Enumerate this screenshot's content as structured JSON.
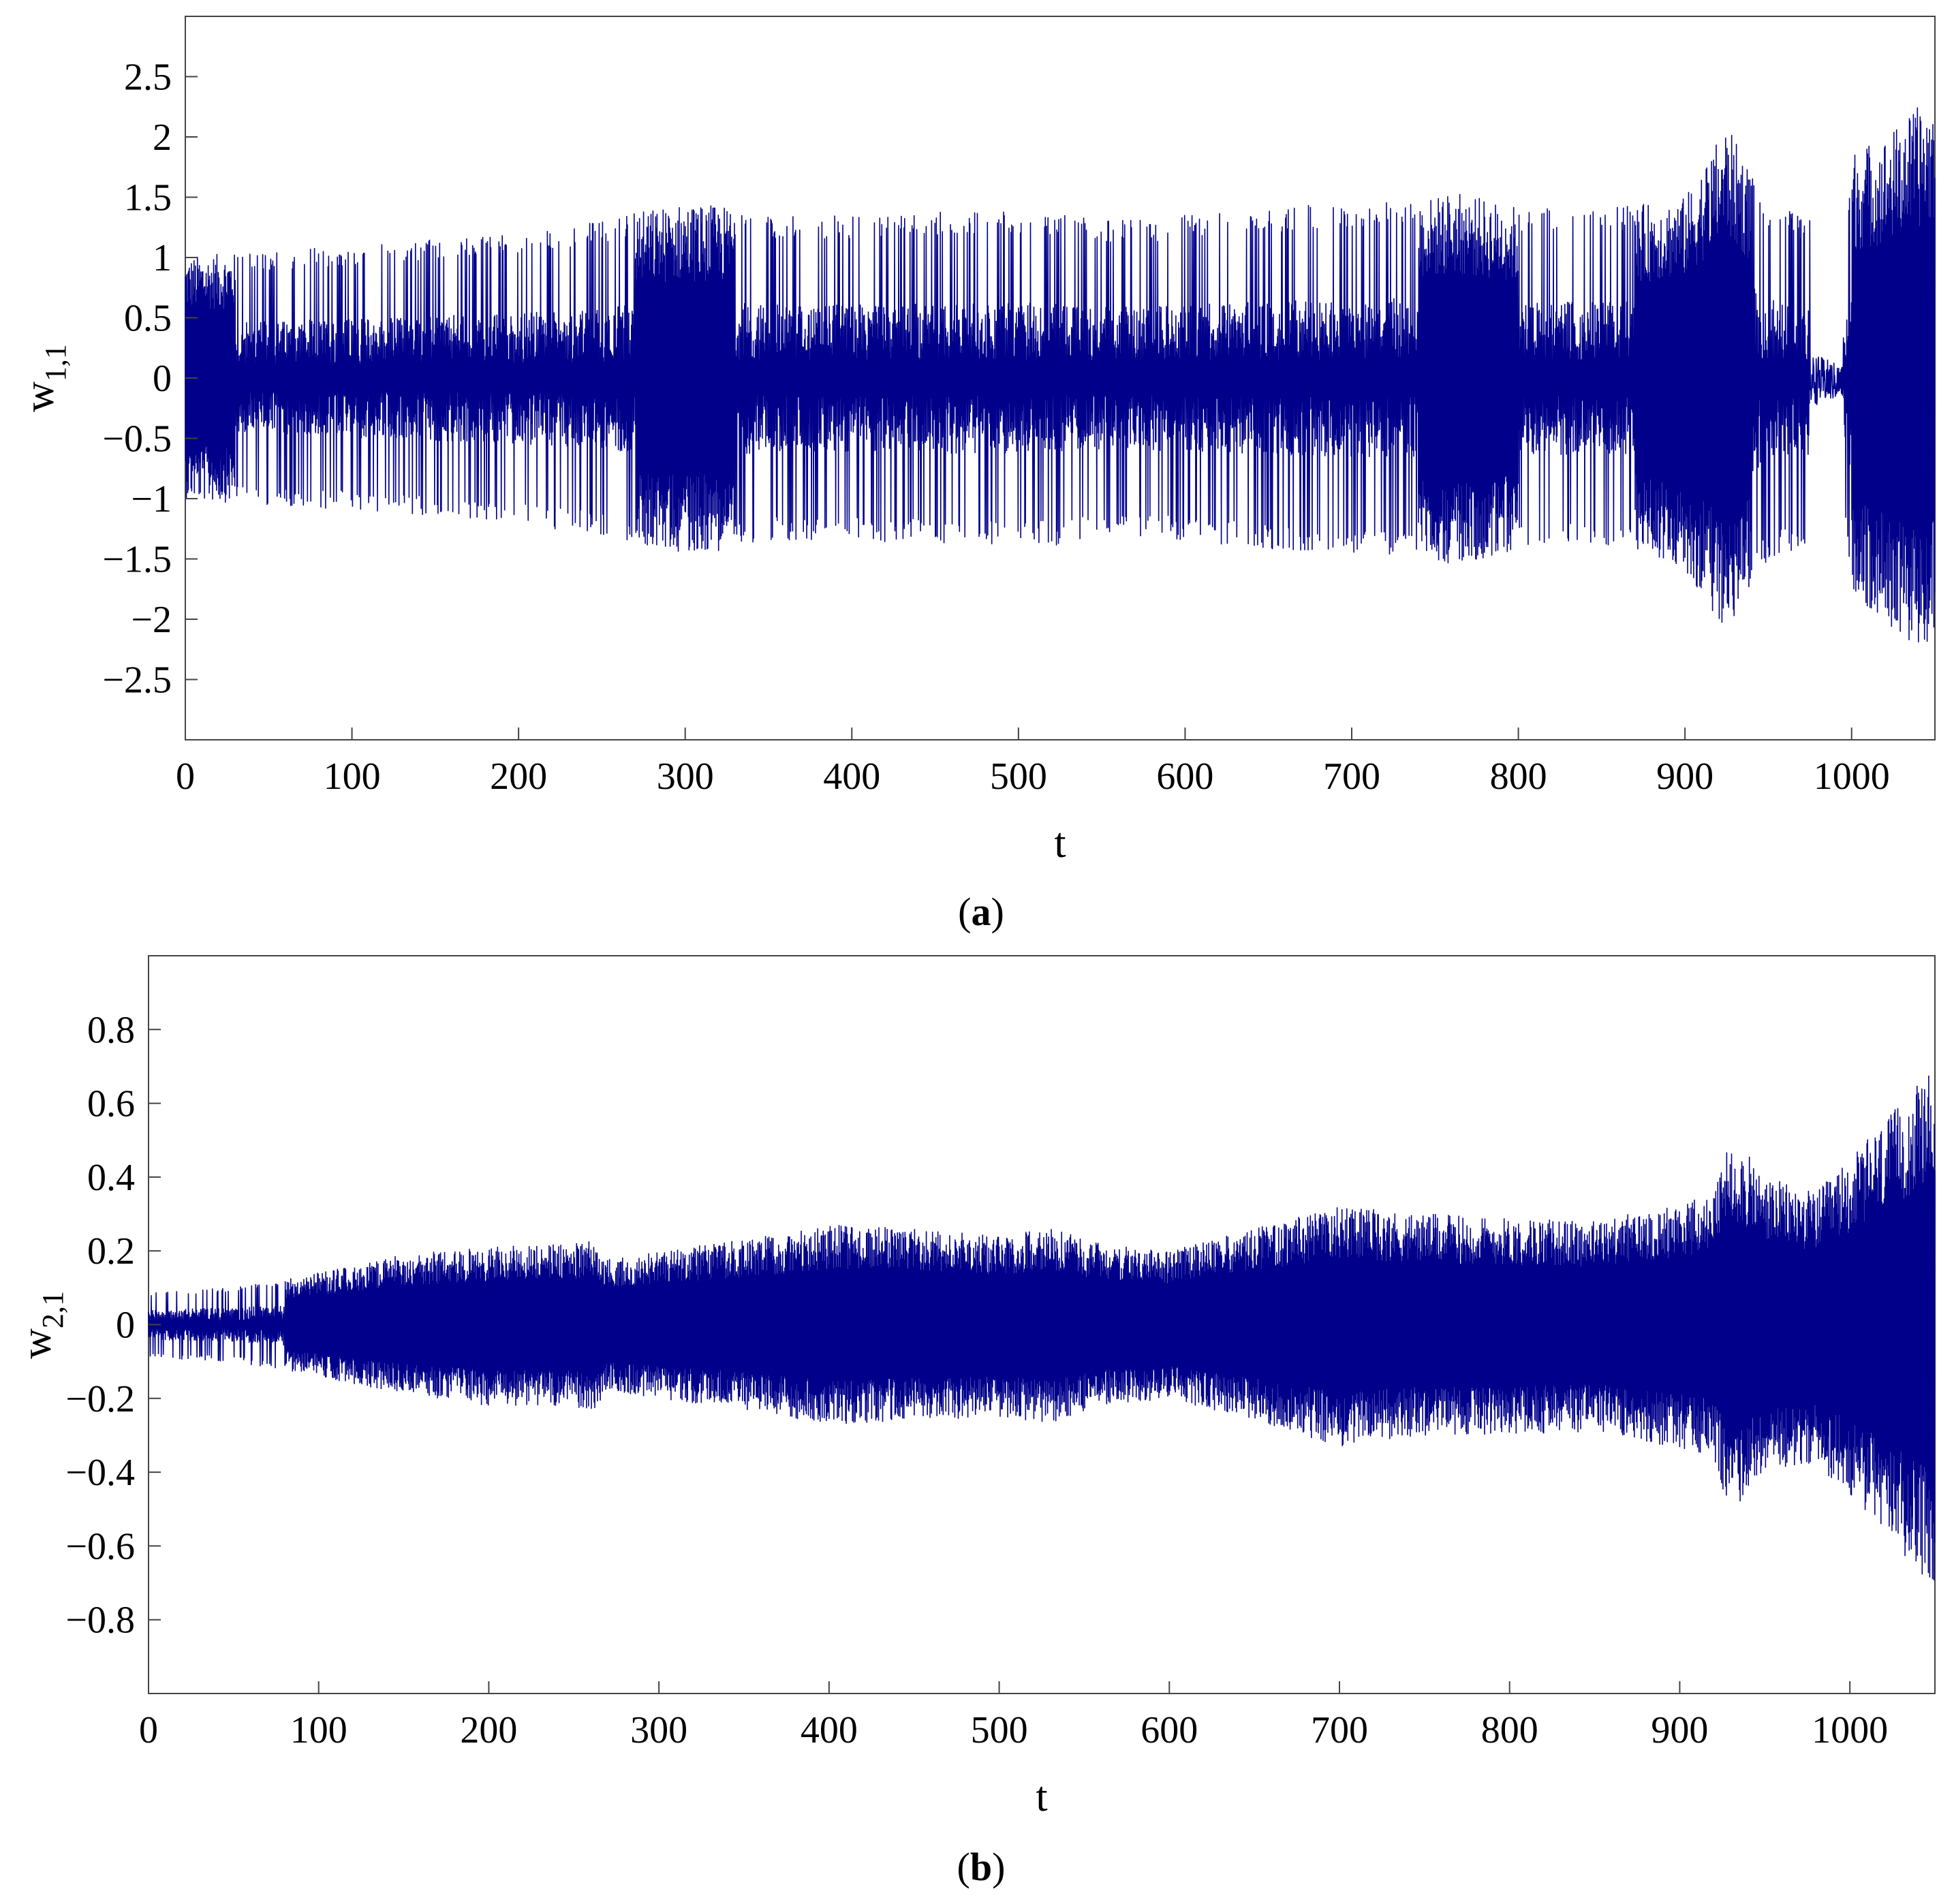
{
  "figure": {
    "panels": [
      {
        "label_open": "(",
        "label_letter": "a",
        "label_close": ")"
      },
      {
        "label_open": "(",
        "label_letter": "b",
        "label_close": ")"
      }
    ]
  },
  "chart_data": [
    {
      "type": "line",
      "panel": "a",
      "title": "",
      "xlabel": "t",
      "ylabel_main": "w",
      "ylabel_sub": "1,1",
      "xlim": [
        0,
        1050
      ],
      "ylim": [
        -3,
        3
      ],
      "xticks": [
        0,
        100,
        200,
        300,
        400,
        500,
        600,
        700,
        800,
        900,
        1000
      ],
      "xtick_labels": [
        "0",
        "100",
        "200",
        "300",
        "400",
        "500",
        "600",
        "700",
        "800",
        "900",
        "1000"
      ],
      "yticks": [
        2.5,
        2,
        1.5,
        1,
        0.5,
        0,
        -0.5,
        -1,
        -1.5,
        -2,
        -2.5
      ],
      "ytick_labels": [
        "2.5",
        "2",
        "1.5",
        "1",
        "0.5",
        "0",
        "−0.5",
        "−1",
        "−1.5",
        "−2",
        "−2.5"
      ],
      "grid": false,
      "line_color": "#00008B",
      "series": [
        {
          "envelope": {
            "t": [
              0,
              10,
              50,
              100,
              150,
              200,
              250,
              270,
              300,
              330,
              350,
              400,
              450,
              500,
              530,
              550,
              600,
              650,
              700,
              750,
              760,
              800,
              850,
              880,
              900,
              925,
              950,
              980,
              995,
              1000,
              1020,
              1040,
              1050
            ],
            "upper": [
              1.0,
              1.02,
              1.05,
              1.1,
              1.15,
              1.2,
              1.3,
              1.38,
              1.45,
              1.42,
              1.35,
              1.35,
              1.38,
              1.4,
              1.35,
              1.3,
              1.35,
              1.42,
              1.45,
              1.5,
              1.55,
              1.42,
              1.4,
              1.45,
              1.5,
              2.1,
              1.45,
              1.3,
              0.8,
              1.9,
              2.0,
              2.25,
              2.3
            ],
            "lower": [
              -1.0,
              -1.02,
              -1.05,
              -1.1,
              -1.15,
              -1.22,
              -1.3,
              -1.38,
              -1.45,
              -1.42,
              -1.35,
              -1.35,
              -1.38,
              -1.4,
              -1.38,
              -1.3,
              -1.35,
              -1.42,
              -1.45,
              -1.5,
              -1.58,
              -1.42,
              -1.4,
              -1.45,
              -1.6,
              -2.1,
              -1.5,
              -1.4,
              -1.0,
              -1.8,
              -2.0,
              -2.3,
              -2.1
            ]
          },
          "dense_regions": [
            [
              0,
              30
            ],
            [
              270,
              330
            ],
            [
              740,
              800
            ],
            [
              870,
              940
            ],
            [
              1000,
              1050
            ]
          ],
          "gaps": [
            [
              975,
              995
            ]
          ]
        }
      ]
    },
    {
      "type": "line",
      "panel": "b",
      "title": "",
      "xlabel": "t",
      "ylabel_main": "w",
      "ylabel_sub": "2,1",
      "xlim": [
        0,
        1050
      ],
      "ylim": [
        -1,
        1
      ],
      "xticks": [
        0,
        100,
        200,
        300,
        400,
        500,
        600,
        700,
        800,
        900,
        1000
      ],
      "xtick_labels": [
        "0",
        "100",
        "200",
        "300",
        "400",
        "500",
        "600",
        "700",
        "800",
        "900",
        "1000"
      ],
      "yticks": [
        0.8,
        0.6,
        0.4,
        0.2,
        0,
        -0.2,
        -0.4,
        -0.6,
        -0.8
      ],
      "ytick_labels": [
        "0.8",
        "0.6",
        "0.4",
        "0.2",
        "0",
        "−0.2",
        "−0.4",
        "−0.6",
        "−0.8"
      ],
      "grid": false,
      "line_color": "#00008B",
      "series": [
        {
          "envelope": {
            "t": [
              0,
              50,
              100,
              150,
              200,
              250,
              260,
              270,
              300,
              350,
              400,
              450,
              500,
              530,
              560,
              600,
              650,
              700,
              750,
              800,
              850,
              900,
              920,
              930,
              950,
              980,
              1000,
              1030,
              1050
            ],
            "upper": [
              0.09,
              0.1,
              0.14,
              0.19,
              0.21,
              0.22,
              0.23,
              0.18,
              0.2,
              0.23,
              0.27,
              0.26,
              0.24,
              0.26,
              0.22,
              0.2,
              0.26,
              0.32,
              0.3,
              0.29,
              0.28,
              0.33,
              0.35,
              0.52,
              0.4,
              0.36,
              0.45,
              0.6,
              0.7
            ],
            "lower": [
              -0.09,
              -0.1,
              -0.14,
              -0.19,
              -0.22,
              -0.22,
              -0.24,
              -0.18,
              -0.2,
              -0.23,
              -0.27,
              -0.26,
              -0.25,
              -0.27,
              -0.22,
              -0.2,
              -0.26,
              -0.33,
              -0.3,
              -0.3,
              -0.29,
              -0.34,
              -0.36,
              -0.52,
              -0.4,
              -0.38,
              -0.46,
              -0.62,
              -0.71
            ]
          },
          "dense_regions": [
            [
              80,
              1050
            ]
          ]
        }
      ]
    }
  ]
}
